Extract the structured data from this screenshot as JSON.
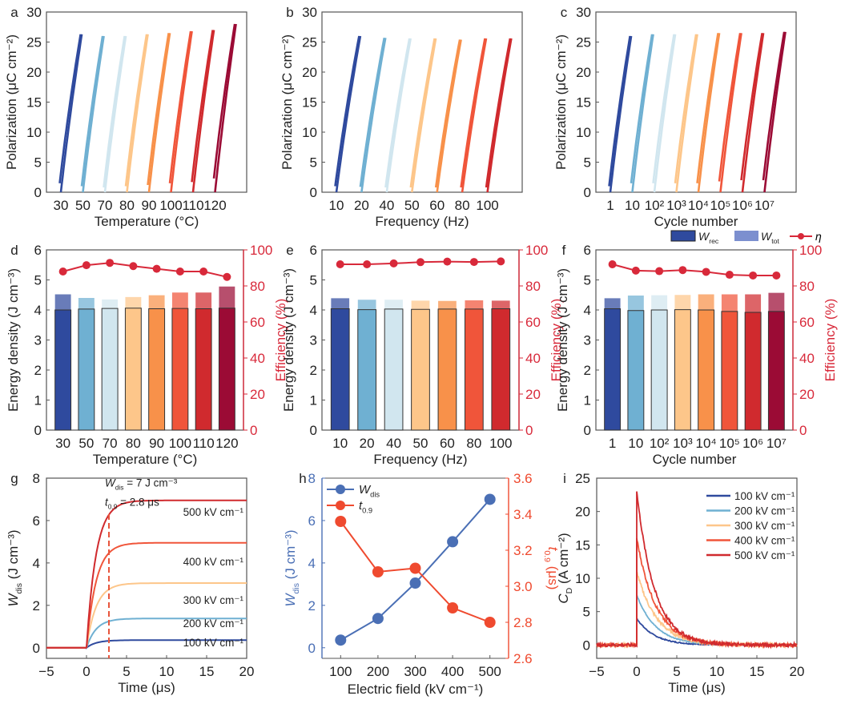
{
  "colors": {
    "palette8": [
      "#2f4a9e",
      "#6fb0d2",
      "#d1e6ef",
      "#fdc68a",
      "#f8914a",
      "#f0553a",
      "#d02a2e",
      "#9b0b35"
    ],
    "palette7": [
      "#2f4a9e",
      "#6fb0d2",
      "#d1e6ef",
      "#fdc68a",
      "#f8914a",
      "#f0553a",
      "#d02a2e"
    ],
    "efficiency": "#d8293a",
    "wdis_blue": "#4a6fb5",
    "t09_red": "#ef4a2f",
    "axis": "#333333"
  },
  "chart_data": [
    {
      "panel": "a",
      "type": "line",
      "title": "",
      "xlabel": "Temperature (°C)",
      "ylabel": "Polarization (μC cm⁻²)",
      "ylim": [
        0,
        30
      ],
      "yticks": [
        0,
        5,
        10,
        15,
        20,
        25,
        30
      ],
      "categories": [
        "30",
        "50",
        "70",
        "80",
        "90",
        "100",
        "110",
        "120"
      ],
      "series": [
        {
          "name": "30",
          "pmax": 26.3,
          "pr": 1.5
        },
        {
          "name": "50",
          "pmax": 26.0,
          "pr": 1.0
        },
        {
          "name": "70",
          "pmax": 26.0,
          "pr": 0.8
        },
        {
          "name": "80",
          "pmax": 26.3,
          "pr": 1.0
        },
        {
          "name": "90",
          "pmax": 26.5,
          "pr": 1.2
        },
        {
          "name": "100",
          "pmax": 26.8,
          "pr": 1.5
        },
        {
          "name": "110",
          "pmax": 27.0,
          "pr": 1.7
        },
        {
          "name": "120",
          "pmax": 28.0,
          "pr": 2.3
        }
      ]
    },
    {
      "panel": "b",
      "type": "line",
      "xlabel": "Frequency (Hz)",
      "ylabel": "Polarization (μC cm⁻²)",
      "ylim": [
        0,
        30
      ],
      "yticks": [
        0,
        5,
        10,
        15,
        20,
        25,
        30
      ],
      "categories": [
        "10",
        "20",
        "40",
        "50",
        "60",
        "80",
        "100"
      ],
      "series": [
        {
          "name": "10",
          "pmax": 26.0,
          "pr": 1.0
        },
        {
          "name": "20",
          "pmax": 25.7,
          "pr": 0.9
        },
        {
          "name": "40",
          "pmax": 25.6,
          "pr": 0.8
        },
        {
          "name": "50",
          "pmax": 25.6,
          "pr": 0.8
        },
        {
          "name": "60",
          "pmax": 25.4,
          "pr": 0.8
        },
        {
          "name": "80",
          "pmax": 25.6,
          "pr": 0.8
        },
        {
          "name": "100",
          "pmax": 25.6,
          "pr": 0.8
        }
      ]
    },
    {
      "panel": "c",
      "type": "line",
      "xlabel": "Cycle number",
      "ylabel": "Polarization (μC cm⁻²)",
      "ylim": [
        0,
        30
      ],
      "yticks": [
        0,
        5,
        10,
        15,
        20,
        25,
        30
      ],
      "categories": [
        "1",
        "10",
        "10²",
        "10³",
        "10⁴",
        "10⁵",
        "10⁶",
        "10⁷"
      ],
      "series": [
        {
          "name": "1",
          "pmax": 26.0,
          "pr": 1.0
        },
        {
          "name": "10",
          "pmax": 26.3,
          "pr": 1.5
        },
        {
          "name": "10²",
          "pmax": 26.3,
          "pr": 1.5
        },
        {
          "name": "10³",
          "pmax": 26.3,
          "pr": 1.5
        },
        {
          "name": "10⁴",
          "pmax": 26.5,
          "pr": 1.5
        },
        {
          "name": "10⁵",
          "pmax": 26.5,
          "pr": 1.8
        },
        {
          "name": "10⁶",
          "pmax": 26.5,
          "pr": 2.0
        },
        {
          "name": "10⁷",
          "pmax": 26.7,
          "pr": 2.0
        }
      ]
    },
    {
      "panel": "d",
      "type": "bar",
      "xlabel": "Temperature (°C)",
      "ylabel": "Energy density (J cm⁻³)",
      "y2label": "Efficiency (%)",
      "ylim": [
        0,
        6
      ],
      "y2lim": [
        0,
        100
      ],
      "yticks": [
        0,
        1,
        2,
        3,
        4,
        5,
        6
      ],
      "y2ticks": [
        0,
        20,
        40,
        60,
        80,
        100
      ],
      "categories": [
        "30",
        "50",
        "70",
        "80",
        "90",
        "100",
        "110",
        "120"
      ],
      "series": [
        {
          "name": "W_rec",
          "values": [
            4.0,
            4.03,
            4.05,
            4.06,
            4.04,
            4.05,
            4.04,
            4.06
          ]
        },
        {
          "name": "W_tot",
          "values": [
            4.52,
            4.4,
            4.35,
            4.43,
            4.49,
            4.58,
            4.58,
            4.78
          ]
        },
        {
          "name": "η",
          "values": [
            88,
            91.5,
            92.8,
            91,
            89.5,
            88,
            88,
            85
          ]
        }
      ]
    },
    {
      "panel": "e",
      "type": "bar",
      "xlabel": "Frequency (Hz)",
      "ylabel": "Energy density (J cm⁻³)",
      "y2label": "Efficiency (%)",
      "ylim": [
        0,
        6
      ],
      "y2lim": [
        0,
        100
      ],
      "yticks": [
        0,
        1,
        2,
        3,
        4,
        5,
        6
      ],
      "y2ticks": [
        0,
        20,
        40,
        60,
        80,
        100
      ],
      "categories": [
        "10",
        "20",
        "40",
        "50",
        "60",
        "80",
        "100"
      ],
      "series": [
        {
          "name": "W_rec",
          "values": [
            4.04,
            4.01,
            4.03,
            4.02,
            4.03,
            4.03,
            4.04
          ]
        },
        {
          "name": "W_tot",
          "values": [
            4.39,
            4.34,
            4.34,
            4.31,
            4.3,
            4.32,
            4.31
          ]
        },
        {
          "name": "η",
          "values": [
            92,
            92,
            92.5,
            93.2,
            93.5,
            93.3,
            93.6
          ]
        }
      ]
    },
    {
      "panel": "f",
      "type": "bar",
      "xlabel": "Cycle number",
      "ylabel": "Energy density (J cm⁻³)",
      "y2label": "Efficiency (%)",
      "ylim": [
        0,
        6
      ],
      "y2lim": [
        0,
        100
      ],
      "yticks": [
        0,
        1,
        2,
        3,
        4,
        5,
        6
      ],
      "y2ticks": [
        0,
        20,
        40,
        60,
        80,
        100
      ],
      "categories": [
        "1",
        "10",
        "10²",
        "10³",
        "10⁴",
        "10⁵",
        "10⁶",
        "10⁷"
      ],
      "legend": {
        "placement": "top-right",
        "entries": [
          "W_rec",
          "W_tot",
          "η"
        ]
      },
      "series": [
        {
          "name": "W_rec",
          "values": [
            4.04,
            3.98,
            4.0,
            4.01,
            4.0,
            3.95,
            3.92,
            3.95
          ]
        },
        {
          "name": "W_tot",
          "values": [
            4.39,
            4.48,
            4.49,
            4.5,
            4.52,
            4.52,
            4.52,
            4.57
          ]
        },
        {
          "name": "η",
          "values": [
            92,
            88.5,
            88.2,
            88.8,
            87.8,
            86.2,
            85.8,
            85.8
          ]
        }
      ]
    },
    {
      "panel": "g",
      "type": "line",
      "xlabel": "Time (μs)",
      "ylabel": "W_dis (J cm⁻³)",
      "xlim": [
        -5,
        20
      ],
      "ylim": [
        -0.5,
        8
      ],
      "xticks": [
        -5,
        0,
        5,
        10,
        15,
        20
      ],
      "yticks": [
        0,
        2,
        4,
        6,
        8
      ],
      "annotations": [
        "W_dis = 7 J cm⁻³",
        "t_0.9 = 2.8 μs"
      ],
      "t09_marker": 2.8,
      "series": [
        {
          "name": "100 kV cm⁻¹",
          "plateau": 0.36,
          "tau": 1.2
        },
        {
          "name": "200 kV cm⁻¹",
          "plateau": 1.38,
          "tau": 1.2
        },
        {
          "name": "300 kV cm⁻¹",
          "plateau": 3.05,
          "tau": 1.2
        },
        {
          "name": "400 kV cm⁻¹",
          "plateau": 4.95,
          "tau": 1.2
        },
        {
          "name": "500 kV cm⁻¹",
          "plateau": 6.95,
          "tau": 1.2
        }
      ]
    },
    {
      "panel": "h",
      "type": "line",
      "xlabel": "Electric field (kV cm⁻¹)",
      "ylabel": "W_dis (J cm⁻³)",
      "y2label": "t_0.9 (μs)",
      "x": [
        100,
        200,
        300,
        400,
        500
      ],
      "xlim": [
        50,
        550
      ],
      "ylim": [
        -0.5,
        8
      ],
      "y2lim": [
        2.6,
        3.6
      ],
      "xticks": [
        100,
        200,
        300,
        400,
        500
      ],
      "yticks": [
        0,
        2,
        4,
        6,
        8
      ],
      "y2ticks": [
        2.6,
        2.8,
        3.0,
        3.2,
        3.4,
        3.6
      ],
      "legend": {
        "placement": "top-left",
        "entries": [
          "W_dis",
          "t_0.9"
        ]
      },
      "series": [
        {
          "name": "W_dis",
          "axis": "left",
          "values": [
            0.36,
            1.38,
            3.05,
            5.0,
            7.0
          ]
        },
        {
          "name": "t_0.9",
          "axis": "right",
          "values": [
            3.36,
            3.08,
            3.1,
            2.88,
            2.8
          ]
        }
      ]
    },
    {
      "panel": "i",
      "type": "line",
      "xlabel": "Time (μs)",
      "ylabel": "C_D (A cm⁻²)",
      "xlim": [
        -5,
        20
      ],
      "ylim": [
        -2,
        25
      ],
      "xticks": [
        -5,
        0,
        5,
        10,
        15,
        20
      ],
      "yticks": [
        0,
        5,
        10,
        15,
        20,
        25
      ],
      "legend": {
        "placement": "top-right",
        "entries": [
          "100 kV cm⁻¹",
          "200 kV cm⁻¹",
          "300 kV cm⁻¹",
          "400 kV cm⁻¹",
          "500 kV cm⁻¹"
        ]
      },
      "series": [
        {
          "name": "100 kV cm⁻¹",
          "peak": 4.0,
          "tau": 2.2
        },
        {
          "name": "200 kV cm⁻¹",
          "peak": 7.5,
          "tau": 2.4
        },
        {
          "name": "300 kV cm⁻¹",
          "peak": 11.0,
          "tau": 2.5
        },
        {
          "name": "400 kV cm⁻¹",
          "peak": 16.0,
          "tau": 2.4
        },
        {
          "name": "500 kV cm⁻¹",
          "peak": 23.0,
          "tau": 2.2
        }
      ]
    }
  ]
}
